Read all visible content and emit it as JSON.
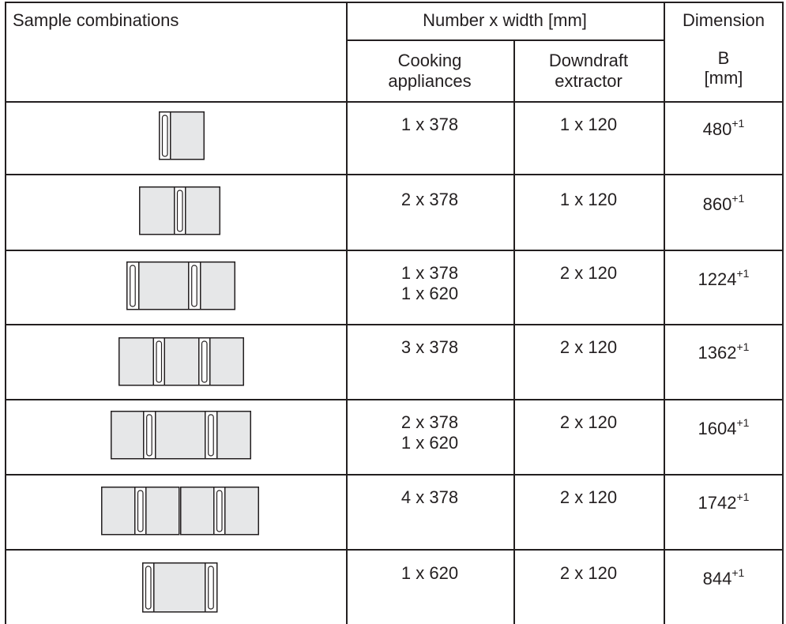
{
  "header": {
    "col1": "Sample combinations",
    "group": "Number x width [mm]",
    "col4_line1": "Dimension",
    "col4_line2": "B",
    "col4_line3": "[mm]",
    "sub_cooking_1": "Cooking",
    "sub_cooking_2": "appliances",
    "sub_down_1": "Downdraft",
    "sub_down_2": "extractor"
  },
  "rows": [
    {
      "diagram": "378 + extractor",
      "cooking": [
        "1 x 378"
      ],
      "downdraft": "1 x 120",
      "dimension": "480",
      "tolerance": "+1"
    },
    {
      "diagram": "378 + extractor + 378",
      "cooking": [
        "2 x 378"
      ],
      "downdraft": "1 x 120",
      "dimension": "860",
      "tolerance": "+1"
    },
    {
      "diagram": "extractor + 620 + extractor + 378",
      "cooking": [
        "1 x 378",
        "1 x 620"
      ],
      "downdraft": "2 x 120",
      "dimension": "1224",
      "tolerance": "+1"
    },
    {
      "diagram": "378 + extractor + 378 + extractor + 378",
      "cooking": [
        "3 x 378"
      ],
      "downdraft": "2 x 120",
      "dimension": "1362",
      "tolerance": "+1"
    },
    {
      "diagram": "378 + extractor + 620 + extractor + 378",
      "cooking": [
        "2 x 378",
        "1 x 620"
      ],
      "downdraft": "2 x 120",
      "dimension": "1604",
      "tolerance": "+1"
    },
    {
      "diagram": "378 + 378 + extractor + 378 + extractor + 378",
      "cooking": [
        "4 x 378"
      ],
      "downdraft": "2 x 120",
      "dimension": "1742",
      "tolerance": "+1"
    },
    {
      "diagram": "extractor + 620 + extractor",
      "cooking": [
        "1 x 620"
      ],
      "downdraft": "2 x 120",
      "dimension": "844",
      "tolerance": "+1"
    }
  ]
}
